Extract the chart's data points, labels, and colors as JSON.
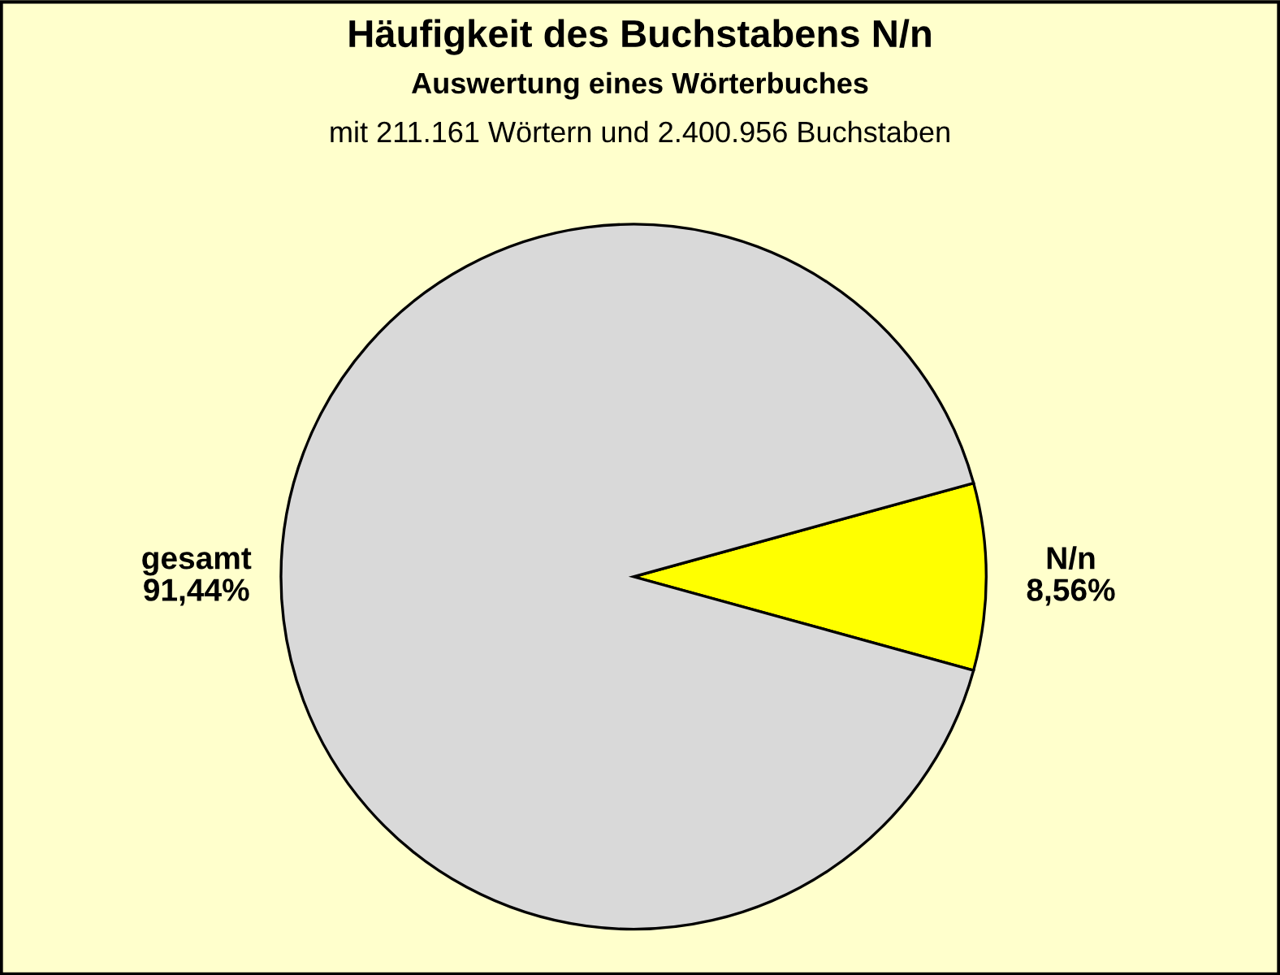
{
  "chart_data": {
    "type": "pie",
    "title": "Häufigkeit des Buchstabens N/n",
    "subtitle": "Auswertung eines Wörterbuches",
    "annotations": [
      "mit 211.161 Wörtern und 2.400.956 Buchstaben"
    ],
    "categories": [
      "N/n",
      "gesamt"
    ],
    "values": [
      8.56,
      91.44
    ],
    "colors": [
      "#ffff00",
      "#d9d9d9"
    ],
    "value_labels": [
      "8,56%",
      "91,44%"
    ],
    "legend": false
  }
}
